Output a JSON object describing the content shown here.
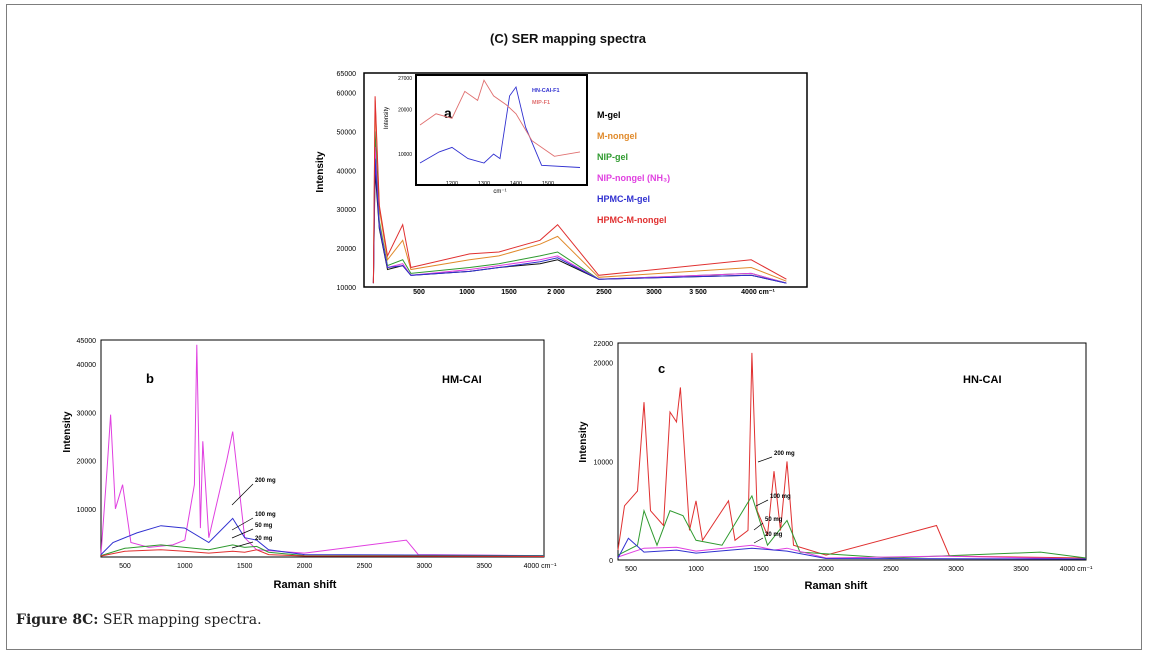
{
  "figure": {
    "title": "(C) SER mapping spectra",
    "caption_label": "Figure 8C:",
    "caption_text": " SER mapping spectra."
  },
  "colors": {
    "M-gel": "#111111",
    "M-nongel": "#e08a2b",
    "NIP-gel": "#2f9a2f",
    "NIP-nongel": "#e040e0",
    "HPMC-M-gel": "#3030d0",
    "HPMC-M-nongel": "#e03030"
  },
  "chart_data": [
    {
      "id": "main",
      "type": "line",
      "title": "",
      "xlabel": "",
      "ylabel": "Intensity",
      "x_ticks": [
        "500",
        "1000",
        "1500",
        "2 000",
        "2500",
        "3000",
        "3 500",
        "4000 cm⁻¹"
      ],
      "y_ticks": [
        "10000",
        "20000",
        "30000",
        "40000",
        "50000",
        "60000",
        "65000"
      ],
      "ylim": [
        10000,
        65000
      ],
      "legend_position": "right",
      "series": [
        {
          "name": "M-gel",
          "color": "#111111",
          "points": [
            [
              80,
              11000
            ],
            [
              95,
              40000
            ],
            [
              130,
              25000
            ],
            [
              200,
              14500
            ],
            [
              330,
              15500
            ],
            [
              400,
              13000
            ],
            [
              900,
              14000
            ],
            [
              1150,
              15000
            ],
            [
              1500,
              16000
            ],
            [
              1650,
              17000
            ],
            [
              2000,
              12000
            ],
            [
              3300,
              13000
            ],
            [
              3600,
              11000
            ]
          ]
        },
        {
          "name": "M-nongel",
          "color": "#e08a2b",
          "points": [
            [
              80,
              11000
            ],
            [
              95,
              58000
            ],
            [
              130,
              30000
            ],
            [
              200,
              17000
            ],
            [
              330,
              22000
            ],
            [
              400,
              14500
            ],
            [
              900,
              17000
            ],
            [
              1150,
              18000
            ],
            [
              1500,
              21000
            ],
            [
              1650,
              23000
            ],
            [
              2000,
              12500
            ],
            [
              3300,
              15000
            ],
            [
              3600,
              11500
            ]
          ]
        },
        {
          "name": "NIP-gel",
          "color": "#2f9a2f",
          "points": [
            [
              80,
              11000
            ],
            [
              95,
              50000
            ],
            [
              130,
              27000
            ],
            [
              200,
              15500
            ],
            [
              330,
              17000
            ],
            [
              400,
              13500
            ],
            [
              900,
              15000
            ],
            [
              1150,
              16000
            ],
            [
              1500,
              18000
            ],
            [
              1650,
              19000
            ],
            [
              2000,
              12000
            ],
            [
              3300,
              13500
            ],
            [
              3600,
              11000
            ]
          ]
        },
        {
          "name": "NIP-nongel (NH₃)",
          "color": "#e040e0",
          "points": [
            [
              80,
              11000
            ],
            [
              95,
              46000
            ],
            [
              130,
              26000
            ],
            [
              200,
              15000
            ],
            [
              330,
              16000
            ],
            [
              400,
              13000
            ],
            [
              900,
              14500
            ],
            [
              1150,
              15500
            ],
            [
              1500,
              17000
            ],
            [
              1650,
              18000
            ],
            [
              2000,
              12000
            ],
            [
              3300,
              13500
            ],
            [
              3600,
              11000
            ]
          ]
        },
        {
          "name": "HPMC-M-gel",
          "color": "#3030d0",
          "points": [
            [
              80,
              11000
            ],
            [
              95,
              43000
            ],
            [
              130,
              25500
            ],
            [
              200,
              15000
            ],
            [
              330,
              15500
            ],
            [
              400,
              13000
            ],
            [
              900,
              14000
            ],
            [
              1150,
              15000
            ],
            [
              1500,
              16500
            ],
            [
              1650,
              17500
            ],
            [
              2000,
              12000
            ],
            [
              3300,
              13000
            ],
            [
              3600,
              11000
            ]
          ]
        },
        {
          "name": "HPMC-M-nongel",
          "color": "#e03030",
          "points": [
            [
              80,
              11000
            ],
            [
              95,
              59000
            ],
            [
              130,
              31000
            ],
            [
              200,
              18000
            ],
            [
              330,
              26000
            ],
            [
              400,
              15000
            ],
            [
              900,
              18500
            ],
            [
              1150,
              19000
            ],
            [
              1500,
              22000
            ],
            [
              1650,
              26000
            ],
            [
              2000,
              13000
            ],
            [
              3300,
              17000
            ],
            [
              3600,
              12000
            ]
          ]
        }
      ],
      "inset": {
        "label": "a",
        "ylabel": "Intensity",
        "xlabel": "cm⁻¹",
        "x_ticks": [
          "1200",
          "1300",
          "1400",
          "1500"
        ],
        "y_ticks": [
          "10000",
          "20000",
          "27000"
        ],
        "xlim": [
          1100,
          1600
        ],
        "ylim": [
          6000,
          27000
        ],
        "series": [
          {
            "name": "HN-CAI-F1",
            "color": "#3030d0",
            "points": [
              [
                1100,
                8000
              ],
              [
                1160,
                10500
              ],
              [
                1200,
                11500
              ],
              [
                1250,
                9000
              ],
              [
                1300,
                8000
              ],
              [
                1330,
                10000
              ],
              [
                1350,
                9000
              ],
              [
                1380,
                23000
              ],
              [
                1400,
                25000
              ],
              [
                1430,
                16000
              ],
              [
                1480,
                7500
              ],
              [
                1600,
                7000
              ]
            ]
          },
          {
            "name": "MIP-F1",
            "color": "#e07070",
            "points": [
              [
                1100,
                16500
              ],
              [
                1150,
                19000
              ],
              [
                1200,
                18000
              ],
              [
                1240,
                24000
              ],
              [
                1280,
                22000
              ],
              [
                1300,
                26500
              ],
              [
                1330,
                23000
              ],
              [
                1370,
                21000
              ],
              [
                1400,
                19000
              ],
              [
                1450,
                13000
              ],
              [
                1520,
                9500
              ],
              [
                1600,
                10500
              ]
            ]
          }
        ]
      }
    },
    {
      "id": "b",
      "type": "line",
      "panel_label": "b",
      "annotation": "HM-CAI",
      "xlabel": "Raman shift",
      "ylabel": "Intensity",
      "x_ticks": [
        "500",
        "1000",
        "1500",
        "2000",
        "2500",
        "3000",
        "3500",
        "4000 cm⁻¹"
      ],
      "y_ticks": [
        "10000",
        "20000",
        "30000",
        "40000",
        "45000"
      ],
      "xlim": [
        300,
        4000
      ],
      "ylim": [
        0,
        45000
      ],
      "series": [
        {
          "name": "200 mg",
          "color": "#e040e0",
          "points": [
            [
              300,
              500
            ],
            [
              350,
              18000
            ],
            [
              380,
              29500
            ],
            [
              420,
              10000
            ],
            [
              480,
              15000
            ],
            [
              550,
              3000
            ],
            [
              700,
              2000
            ],
            [
              900,
              2500
            ],
            [
              1000,
              3500
            ],
            [
              1080,
              15000
            ],
            [
              1100,
              44000
            ],
            [
              1130,
              6000
            ],
            [
              1150,
              24000
            ],
            [
              1200,
              4000
            ],
            [
              1350,
              20000
            ],
            [
              1400,
              26000
            ],
            [
              1450,
              15000
            ],
            [
              1500,
              4000
            ],
            [
              1600,
              1500
            ],
            [
              2000,
              800
            ],
            [
              2850,
              3500
            ],
            [
              2950,
              500
            ],
            [
              4000,
              300
            ]
          ]
        },
        {
          "name": "100 mg",
          "color": "#3030d0",
          "points": [
            [
              300,
              500
            ],
            [
              400,
              3000
            ],
            [
              600,
              5000
            ],
            [
              800,
              6500
            ],
            [
              1000,
              6000
            ],
            [
              1200,
              3000
            ],
            [
              1400,
              8000
            ],
            [
              1500,
              4000
            ],
            [
              1600,
              3500
            ],
            [
              1700,
              1500
            ],
            [
              2000,
              500
            ],
            [
              4000,
              300
            ]
          ]
        },
        {
          "name": "50 mg",
          "color": "#2f9a2f",
          "points": [
            [
              300,
              300
            ],
            [
              500,
              1800
            ],
            [
              800,
              2500
            ],
            [
              1000,
              2000
            ],
            [
              1200,
              1500
            ],
            [
              1400,
              2500
            ],
            [
              1500,
              2000
            ],
            [
              1600,
              2200
            ],
            [
              1700,
              1000
            ],
            [
              2000,
              300
            ],
            [
              4000,
              200
            ]
          ]
        },
        {
          "name": "20 mg",
          "color": "#e03030",
          "points": [
            [
              300,
              200
            ],
            [
              500,
              1200
            ],
            [
              800,
              1500
            ],
            [
              1000,
              1200
            ],
            [
              1200,
              800
            ],
            [
              1400,
              1200
            ],
            [
              1500,
              1000
            ],
            [
              1600,
              1500
            ],
            [
              1700,
              500
            ],
            [
              2000,
              200
            ],
            [
              4000,
              100
            ]
          ]
        }
      ],
      "series_labels": [
        "200 mg",
        "100 mg",
        "50 mg",
        "20 mg"
      ]
    },
    {
      "id": "c",
      "type": "line",
      "panel_label": "c",
      "annotation": "HN-CAI",
      "xlabel": "Raman shift",
      "ylabel": "Intensity",
      "x_ticks": [
        "500",
        "1000",
        "1500",
        "2000",
        "2500",
        "3000",
        "3500",
        "4000 cm⁻¹"
      ],
      "y_ticks": [
        "0",
        "10000",
        "20000",
        "22000"
      ],
      "xlim": [
        400,
        4000
      ],
      "ylim": [
        0,
        22000
      ],
      "series": [
        {
          "name": "200 mg",
          "color": "#e03030",
          "points": [
            [
              400,
              1000
            ],
            [
              450,
              5500
            ],
            [
              550,
              7000
            ],
            [
              600,
              16000
            ],
            [
              650,
              5000
            ],
            [
              750,
              3500
            ],
            [
              800,
              15000
            ],
            [
              850,
              14000
            ],
            [
              880,
              17500
            ],
            [
              950,
              3000
            ],
            [
              1000,
              6000
            ],
            [
              1050,
              2000
            ],
            [
              1150,
              4000
            ],
            [
              1250,
              6000
            ],
            [
              1300,
              2000
            ],
            [
              1400,
              3000
            ],
            [
              1430,
              21000
            ],
            [
              1470,
              5000
            ],
            [
              1550,
              2500
            ],
            [
              1600,
              9000
            ],
            [
              1650,
              3000
            ],
            [
              1700,
              10000
            ],
            [
              1750,
              1500
            ],
            [
              2000,
              500
            ],
            [
              2850,
              3500
            ],
            [
              2950,
              400
            ],
            [
              4000,
              200
            ]
          ]
        },
        {
          "name": "100 mg",
          "color": "#2f9a2f",
          "points": [
            [
              400,
              500
            ],
            [
              550,
              1500
            ],
            [
              600,
              5000
            ],
            [
              700,
              1500
            ],
            [
              800,
              5000
            ],
            [
              900,
              4500
            ],
            [
              1000,
              2000
            ],
            [
              1200,
              1500
            ],
            [
              1430,
              6500
            ],
            [
              1550,
              1500
            ],
            [
              1700,
              4000
            ],
            [
              1800,
              800
            ],
            [
              2500,
              200
            ],
            [
              3650,
              800
            ],
            [
              4000,
              200
            ]
          ]
        },
        {
          "name": "50 mg",
          "color": "#e040e0",
          "points": [
            [
              400,
              300
            ],
            [
              600,
              1200
            ],
            [
              850,
              1300
            ],
            [
              1000,
              900
            ],
            [
              1430,
              1500
            ],
            [
              1600,
              1000
            ],
            [
              1700,
              1200
            ],
            [
              2000,
              200
            ],
            [
              2900,
              400
            ],
            [
              4000,
              100
            ]
          ]
        },
        {
          "name": "20 mg",
          "color": "#3030d0",
          "points": [
            [
              400,
              200
            ],
            [
              480,
              2200
            ],
            [
              600,
              800
            ],
            [
              850,
              1000
            ],
            [
              1000,
              700
            ],
            [
              1430,
              1200
            ],
            [
              1700,
              900
            ],
            [
              2000,
              150
            ],
            [
              4000,
              100
            ]
          ]
        }
      ],
      "series_labels": [
        "200 mg",
        "100 mg",
        "50 mg",
        "20 mg"
      ]
    }
  ]
}
